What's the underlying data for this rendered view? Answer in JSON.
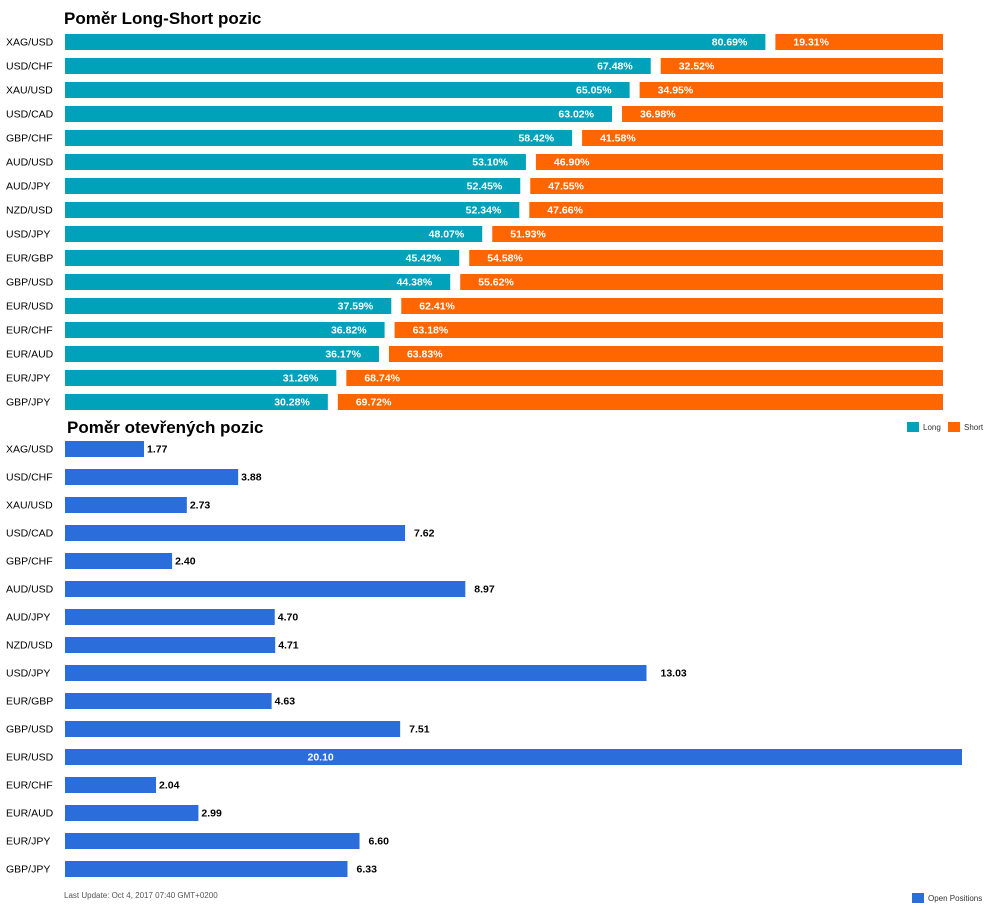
{
  "chart_data": [
    {
      "type": "bar",
      "stacked": true,
      "orientation": "horizontal",
      "title": "Poměr Long-Short pozic",
      "categories": [
        "XAG/USD",
        "USD/CHF",
        "XAU/USD",
        "USD/CAD",
        "GBP/CHF",
        "AUD/USD",
        "AUD/JPY",
        "NZD/USD",
        "USD/JPY",
        "EUR/GBP",
        "GBP/USD",
        "EUR/USD",
        "EUR/CHF",
        "EUR/AUD",
        "EUR/JPY",
        "GBP/JPY"
      ],
      "series": [
        {
          "name": "Long",
          "color": "#00a2b9",
          "values": [
            80.69,
            67.48,
            65.05,
            63.02,
            58.42,
            53.1,
            52.45,
            52.34,
            48.07,
            45.42,
            44.38,
            37.59,
            36.82,
            36.17,
            31.26,
            30.28
          ]
        },
        {
          "name": "Short",
          "color": "#ff6600",
          "values": [
            19.31,
            32.52,
            34.95,
            36.98,
            41.58,
            46.9,
            47.55,
            47.66,
            51.93,
            54.58,
            55.62,
            62.41,
            63.18,
            63.83,
            68.74,
            69.72
          ]
        }
      ],
      "labels_long": [
        "80.69%",
        "67.48%",
        "65.05%",
        "63.02%",
        "58.42%",
        "53.10%",
        "52.45%",
        "52.34%",
        "48.07%",
        "45.42%",
        "44.38%",
        "37.59%",
        "36.82%",
        "36.17%",
        "31.26%",
        "30.28%"
      ],
      "labels_short": [
        "19.31%",
        "32.52%",
        "34.95%",
        "36.98%",
        "41.58%",
        "46.90%",
        "47.55%",
        "47.66%",
        "51.93%",
        "54.58%",
        "55.62%",
        "62.41%",
        "63.18%",
        "63.83%",
        "68.74%",
        "69.72%"
      ],
      "legend": [
        {
          "label": "Long",
          "color": "#00a2b9"
        },
        {
          "label": "Short",
          "color": "#ff6600"
        }
      ],
      "legend_position": "bottom-right",
      "xlim": [
        0,
        100
      ]
    },
    {
      "type": "bar",
      "orientation": "horizontal",
      "title": "Poměr otevřených pozic",
      "categories": [
        "XAG/USD",
        "USD/CHF",
        "XAU/USD",
        "USD/CAD",
        "GBP/CHF",
        "AUD/USD",
        "AUD/JPY",
        "NZD/USD",
        "USD/JPY",
        "EUR/GBP",
        "GBP/USD",
        "EUR/USD",
        "EUR/CHF",
        "EUR/AUD",
        "EUR/JPY",
        "GBP/JPY"
      ],
      "series": [
        {
          "name": "Open Positions",
          "color": "#2a6ddb",
          "values": [
            1.77,
            3.88,
            2.73,
            7.62,
            2.4,
            8.97,
            4.7,
            4.71,
            13.03,
            4.63,
            7.51,
            20.1,
            2.04,
            2.99,
            6.6,
            6.33
          ]
        }
      ],
      "value_labels": [
        "1.77",
        "3.88",
        "2.73",
        "7.62",
        "2.40",
        "8.97",
        "4.70",
        "4.71",
        "13.03",
        "4.63",
        "7.51",
        "20.10",
        "2.04",
        "2.99",
        "6.60",
        "6.33"
      ],
      "legend": [
        {
          "label": "Open Positions",
          "color": "#2a6ddb"
        }
      ],
      "legend_position": "bottom-right",
      "xlim": [
        0,
        20.1
      ]
    }
  ],
  "footer": {
    "last_update": "Last Update: Oct 4, 2017 07:40 GMT+0200"
  }
}
